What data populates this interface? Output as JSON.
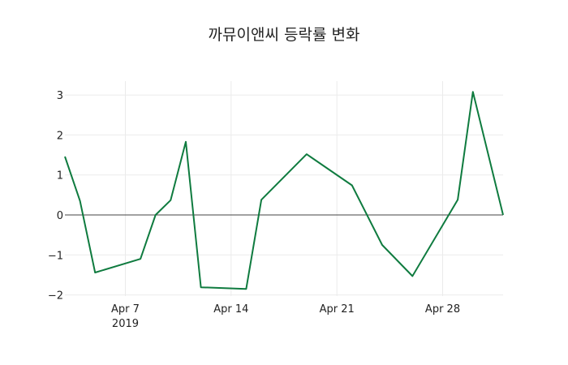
{
  "chart_data": {
    "type": "line",
    "title": "까뮤이앤씨 등락률 변화",
    "xlabel": "",
    "ylabel": "",
    "x": [
      "2019-04-03",
      "2019-04-04",
      "2019-04-05",
      "2019-04-08",
      "2019-04-09",
      "2019-04-10",
      "2019-04-11",
      "2019-04-12",
      "2019-04-15",
      "2019-04-16",
      "2019-04-19",
      "2019-04-22",
      "2019-04-24",
      "2019-04-26",
      "2019-04-29",
      "2019-04-30",
      "2019-05-02"
    ],
    "series": [
      {
        "name": "등락률",
        "color": "#0f7b3f",
        "values": [
          1.46,
          0.35,
          -1.44,
          -1.1,
          0.0,
          0.37,
          1.83,
          -1.81,
          -1.85,
          0.38,
          1.52,
          0.74,
          -0.75,
          -1.53,
          0.38,
          3.08,
          0.0
        ]
      }
    ],
    "x_ticks": [
      {
        "date": "2019-04-07",
        "label": "Apr 7",
        "sublabel": "2019"
      },
      {
        "date": "2019-04-14",
        "label": "Apr 14"
      },
      {
        "date": "2019-04-21",
        "label": "Apr 21"
      },
      {
        "date": "2019-04-28",
        "label": "Apr 28"
      }
    ],
    "y_ticks": [
      3,
      2,
      1,
      0,
      -1,
      -2
    ],
    "y_tick_labels": [
      "3",
      "2",
      "1",
      "0",
      "−1",
      "−2"
    ],
    "ylim": [
      -2.0,
      3.35
    ],
    "xlim": [
      "2019-04-03",
      "2019-05-02"
    ],
    "grid": true,
    "zero_line": true,
    "legend": "none"
  }
}
